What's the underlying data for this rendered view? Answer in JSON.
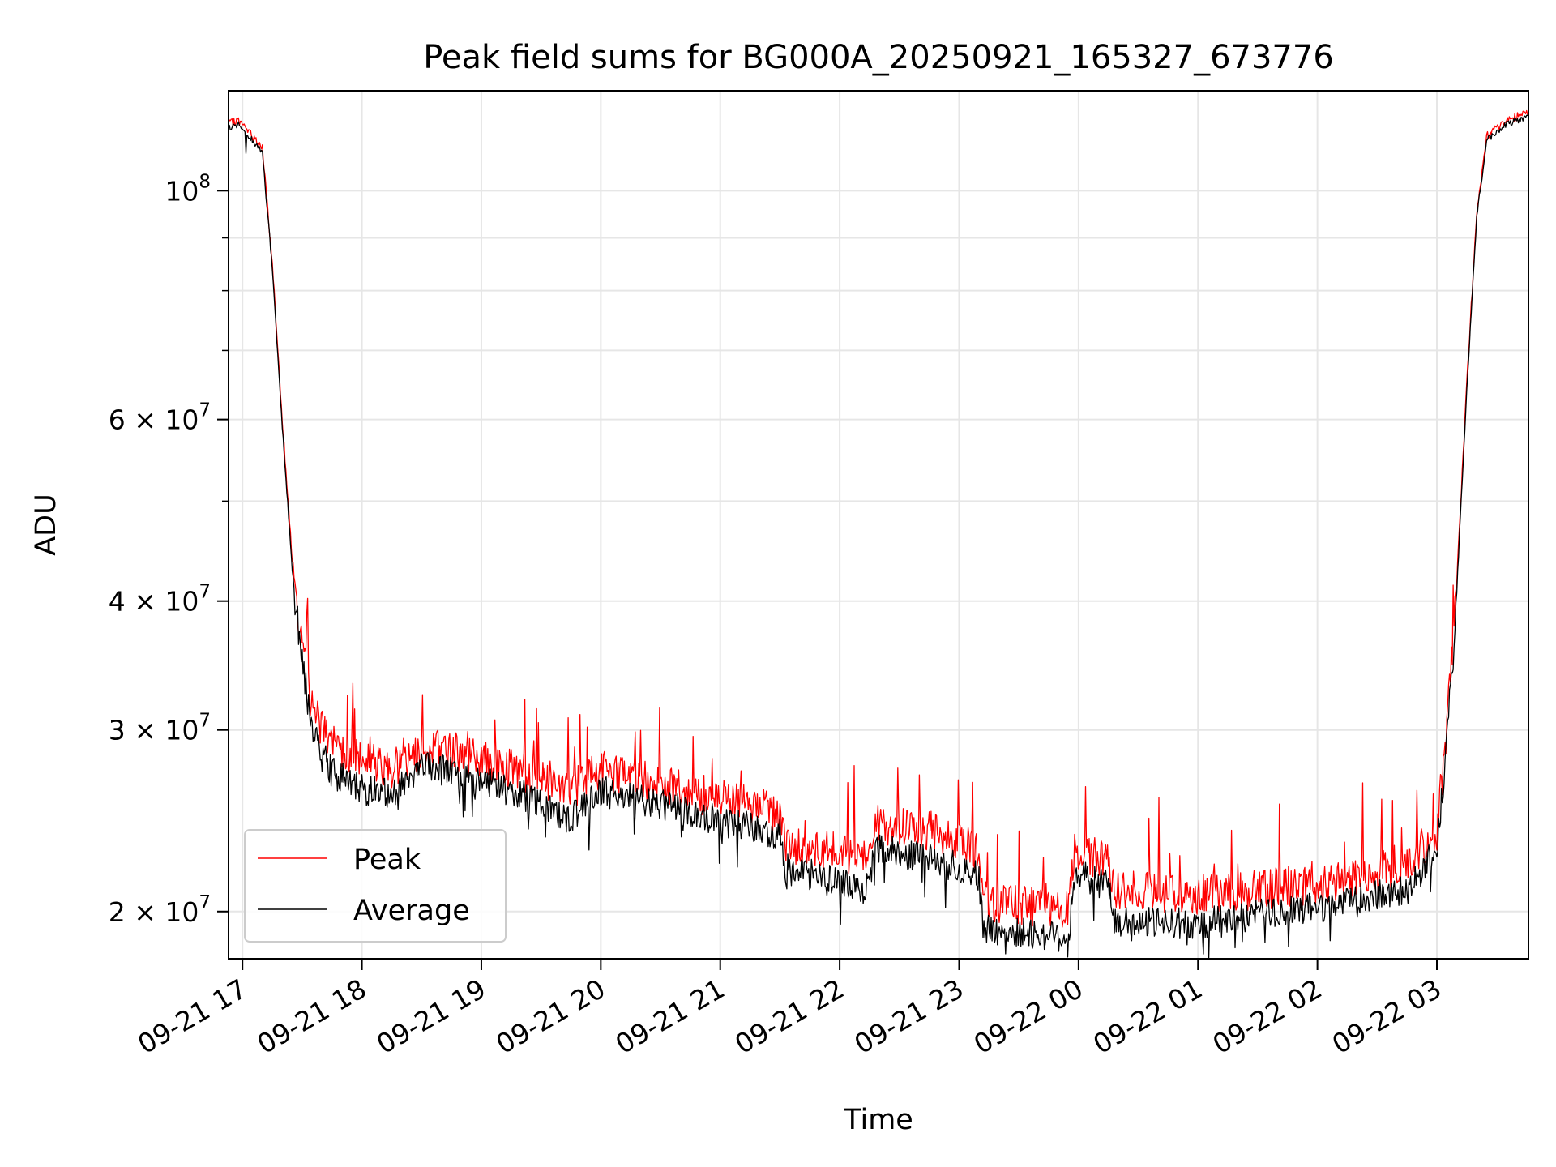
{
  "chart_data": {
    "type": "line",
    "title": "Peak field sums for BG000A_20250921_165327_673776",
    "xlabel": "Time",
    "ylabel": "ADU",
    "y_scale": "log",
    "ylim": [
      18000000,
      125000000
    ],
    "xlim": [
      "2025-09-21 16:53",
      "2025-09-22 03:46"
    ],
    "grid": true,
    "legend_position": "bottom-left",
    "x_ticks": [
      {
        "t": "2025-09-21 17:00",
        "label": "09-21 17"
      },
      {
        "t": "2025-09-21 18:00",
        "label": "09-21 18"
      },
      {
        "t": "2025-09-21 19:00",
        "label": "09-21 19"
      },
      {
        "t": "2025-09-21 20:00",
        "label": "09-21 20"
      },
      {
        "t": "2025-09-21 21:00",
        "label": "09-21 21"
      },
      {
        "t": "2025-09-21 22:00",
        "label": "09-21 22"
      },
      {
        "t": "2025-09-21 23:00",
        "label": "09-21 23"
      },
      {
        "t": "2025-09-22 00:00",
        "label": "09-22 00"
      },
      {
        "t": "2025-09-22 01:00",
        "label": "09-22 01"
      },
      {
        "t": "2025-09-22 02:00",
        "label": "09-22 02"
      },
      {
        "t": "2025-09-22 03:00",
        "label": "09-22 03"
      }
    ],
    "y_major_ticks": [
      {
        "v": 20000000,
        "base": "2 × 10",
        "exp": "7"
      },
      {
        "v": 30000000,
        "base": "3 × 10",
        "exp": "7"
      },
      {
        "v": 40000000,
        "base": "4 × 10",
        "exp": "7"
      },
      {
        "v": 60000000,
        "base": "6 × 10",
        "exp": "7"
      },
      {
        "v": 100000000,
        "base": "10",
        "exp": "8"
      }
    ],
    "y_minor_ticks": [
      50000000,
      70000000,
      80000000,
      90000000
    ],
    "series": [
      {
        "name": "Peak",
        "color": "#ff0000",
        "points": [
          [
            "2025-09-21 16:53",
            116000000
          ],
          [
            "2025-09-21 16:58",
            117000000
          ],
          [
            "2025-09-21 17:05",
            113000000
          ],
          [
            "2025-09-21 17:10",
            110000000
          ],
          [
            "2025-09-21 17:15",
            85000000
          ],
          [
            "2025-09-21 17:20",
            60000000
          ],
          [
            "2025-09-21 17:25",
            44000000
          ],
          [
            "2025-09-21 17:30",
            36000000
          ],
          [
            "2025-09-21 17:35",
            31500000
          ],
          [
            "2025-09-21 17:45",
            29000000
          ],
          [
            "2025-09-21 18:00",
            28000000
          ],
          [
            "2025-09-21 18:15",
            27600000
          ],
          [
            "2025-09-21 18:30",
            28800000
          ],
          [
            "2025-09-21 18:45",
            28800000
          ],
          [
            "2025-09-21 19:00",
            28000000
          ],
          [
            "2025-09-21 19:30",
            27000000
          ],
          [
            "2025-09-21 19:45",
            26300000
          ],
          [
            "2025-09-21 20:00",
            27500000
          ],
          [
            "2025-09-21 20:30",
            26600000
          ],
          [
            "2025-09-21 21:00",
            25700000
          ],
          [
            "2025-09-21 21:30",
            25000000
          ],
          [
            "2025-09-21 21:33",
            23300000
          ],
          [
            "2025-09-21 22:00",
            22800000
          ],
          [
            "2025-09-21 22:15",
            22500000
          ],
          [
            "2025-09-21 22:17",
            24300000
          ],
          [
            "2025-09-21 22:45",
            24000000
          ],
          [
            "2025-09-21 23:10",
            23000000
          ],
          [
            "2025-09-21 23:12",
            20500000
          ],
          [
            "2025-09-21 23:55",
            20000000
          ],
          [
            "2025-09-21 23:58",
            22800000
          ],
          [
            "2025-09-22 00:15",
            22500000
          ],
          [
            "2025-09-22 00:18",
            21000000
          ],
          [
            "2025-09-22 01:00",
            20800000
          ],
          [
            "2025-09-22 02:00",
            21200000
          ],
          [
            "2025-09-22 02:45",
            22200000
          ],
          [
            "2025-09-22 03:00",
            24000000
          ],
          [
            "2025-09-22 03:05",
            30000000
          ],
          [
            "2025-09-22 03:10",
            42000000
          ],
          [
            "2025-09-22 03:15",
            65000000
          ],
          [
            "2025-09-22 03:20",
            95000000
          ],
          [
            "2025-09-22 03:25",
            113000000
          ],
          [
            "2025-09-22 03:35",
            117000000
          ],
          [
            "2025-09-22 03:46",
            119000000
          ]
        ]
      },
      {
        "name": "Average",
        "color": "#000000",
        "points": [
          [
            "2025-09-21 16:53",
            115000000
          ],
          [
            "2025-09-21 16:58",
            116000000
          ],
          [
            "2025-09-21 17:05",
            112000000
          ],
          [
            "2025-09-21 17:10",
            109000000
          ],
          [
            "2025-09-21 17:15",
            84000000
          ],
          [
            "2025-09-21 17:20",
            59000000
          ],
          [
            "2025-09-21 17:25",
            43000000
          ],
          [
            "2025-09-21 17:30",
            35000000
          ],
          [
            "2025-09-21 17:35",
            30000000
          ],
          [
            "2025-09-21 17:45",
            27300000
          ],
          [
            "2025-09-21 18:00",
            26300000
          ],
          [
            "2025-09-21 18:15",
            26000000
          ],
          [
            "2025-09-21 18:30",
            27800000
          ],
          [
            "2025-09-21 18:45",
            27300000
          ],
          [
            "2025-09-21 19:00",
            26800000
          ],
          [
            "2025-09-21 19:30",
            25600000
          ],
          [
            "2025-09-21 19:45",
            24600000
          ],
          [
            "2025-09-21 20:00",
            26200000
          ],
          [
            "2025-09-21 20:30",
            25400000
          ],
          [
            "2025-09-21 21:00",
            24500000
          ],
          [
            "2025-09-21 21:30",
            23800000
          ],
          [
            "2025-09-21 21:33",
            22000000
          ],
          [
            "2025-09-21 22:00",
            21400000
          ],
          [
            "2025-09-21 22:15",
            21000000
          ],
          [
            "2025-09-21 22:17",
            23000000
          ],
          [
            "2025-09-21 22:45",
            22600000
          ],
          [
            "2025-09-21 23:10",
            21700000
          ],
          [
            "2025-09-21 23:12",
            19200000
          ],
          [
            "2025-09-21 23:55",
            18900000
          ],
          [
            "2025-09-21 23:58",
            21700000
          ],
          [
            "2025-09-22 00:15",
            21300000
          ],
          [
            "2025-09-22 00:18",
            19500000
          ],
          [
            "2025-09-22 01:00",
            19500000
          ],
          [
            "2025-09-22 02:00",
            20200000
          ],
          [
            "2025-09-22 02:45",
            21000000
          ],
          [
            "2025-09-22 03:00",
            23000000
          ],
          [
            "2025-09-22 03:05",
            29000000
          ],
          [
            "2025-09-22 03:10",
            41000000
          ],
          [
            "2025-09-22 03:15",
            64000000
          ],
          [
            "2025-09-22 03:20",
            94000000
          ],
          [
            "2025-09-22 03:25",
            112000000
          ],
          [
            "2025-09-22 03:35",
            116000000
          ],
          [
            "2025-09-22 03:46",
            118000000
          ]
        ]
      }
    ]
  }
}
